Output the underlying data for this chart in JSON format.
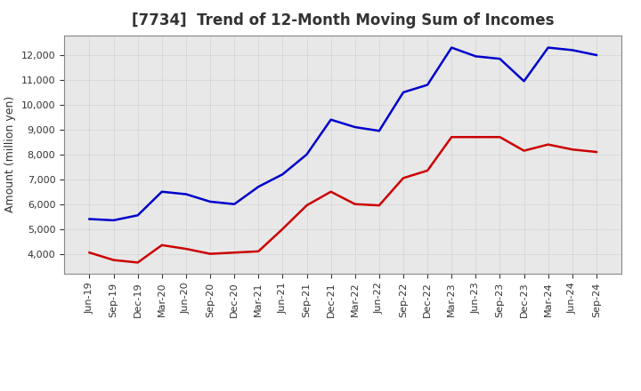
{
  "title": "[7734]  Trend of 12-Month Moving Sum of Incomes",
  "ylabel": "Amount (million yen)",
  "x_labels": [
    "Jun-19",
    "Sep-19",
    "Dec-19",
    "Mar-20",
    "Jun-20",
    "Sep-20",
    "Dec-20",
    "Mar-21",
    "Jun-21",
    "Sep-21",
    "Dec-21",
    "Mar-22",
    "Jun-22",
    "Sep-22",
    "Dec-22",
    "Mar-23",
    "Jun-23",
    "Sep-23",
    "Dec-23",
    "Mar-24",
    "Jun-24",
    "Sep-24"
  ],
  "ordinary_income": [
    5400,
    5350,
    5550,
    6500,
    6400,
    6100,
    6000,
    6700,
    7200,
    8000,
    9400,
    9100,
    8950,
    10500,
    10800,
    12300,
    11950,
    11850,
    10950,
    12300,
    12200,
    12000
  ],
  "net_income": [
    4050,
    3750,
    3650,
    4350,
    4200,
    4000,
    4050,
    4100,
    5000,
    5950,
    6500,
    6000,
    5950,
    7050,
    7350,
    8700,
    8700,
    8700,
    8150,
    8400,
    8200,
    8100
  ],
  "ordinary_color": "#0000cc",
  "net_color": "#cc0000",
  "bg_color": "#ffffff",
  "plot_bg_color": "#e8e8e8",
  "grid_color": "#bbbbbb",
  "title_color": "#333333",
  "ylim_min": 3200,
  "ylim_max": 12800,
  "yticks": [
    4000,
    5000,
    6000,
    7000,
    8000,
    9000,
    10000,
    11000,
    12000
  ],
  "line_width": 1.8,
  "title_fontsize": 12,
  "ylabel_fontsize": 9,
  "tick_fontsize": 8,
  "legend_fontsize": 9
}
